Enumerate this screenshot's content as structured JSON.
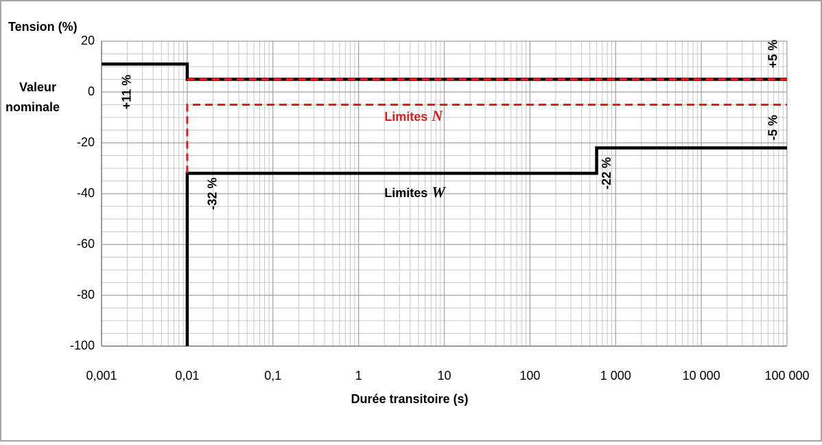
{
  "chart_data": {
    "type": "line",
    "y_title": "Tension (%)",
    "y_note": [
      "Valeur",
      "nominale"
    ],
    "x_title": "Durée transitoire (s)",
    "xscale": "log",
    "xlim": [
      0.001,
      100000
    ],
    "xticks": [
      {
        "value": 0.001,
        "label": "0,001"
      },
      {
        "value": 0.01,
        "label": "0,01"
      },
      {
        "value": 0.1,
        "label": "0,1"
      },
      1,
      10,
      100,
      {
        "value": 1000,
        "label": "1 000"
      },
      {
        "value": 10000,
        "label": "10 000"
      },
      {
        "value": 100000,
        "label": "100 000"
      }
    ],
    "ylim": [
      -100,
      20
    ],
    "yticks": [
      20,
      0,
      -20,
      -40,
      -60,
      -80,
      -100
    ],
    "grid": true,
    "series": [
      {
        "color": "#000000",
        "dash": false,
        "x": [
          0.001,
          0.01,
          0.01,
          100000
        ],
        "values": [
          11,
          11,
          5,
          5
        ]
      },
      {
        "color": "#000000",
        "dash": false,
        "x": [
          0.01,
          0.01,
          600,
          600,
          100000
        ],
        "values": [
          -100,
          -32,
          -32,
          -22,
          -22
        ]
      },
      {
        "color": "#e41a1c",
        "dash": true,
        "x": [
          0.01,
          100000
        ],
        "values": [
          5,
          5
        ]
      },
      {
        "color": "#e41a1c",
        "dash": true,
        "x": [
          0.01,
          0.01,
          100000
        ],
        "values": [
          -32,
          -5,
          -5
        ]
      }
    ],
    "annotations": [
      {
        "text": "+11 %",
        "x": 0.002,
        "y": 0,
        "rotate": true,
        "color": "#000000"
      },
      {
        "text": "-32 %",
        "x": 0.02,
        "y": -40,
        "rotate": true,
        "color": "#000000"
      },
      {
        "text": "-22 %",
        "x": 800,
        "y": -32,
        "rotate": true,
        "color": "#000000"
      },
      {
        "text": "+5 %",
        "x": 70000,
        "y": 15,
        "rotate": true,
        "color": "#000000"
      },
      {
        "text": "-5 %",
        "x": 70000,
        "y": -14,
        "rotate": true,
        "color": "#000000"
      },
      {
        "text": "Limites",
        "symbol": "N",
        "x": 2,
        "y": -10,
        "rotate": false,
        "color": "#e41a1c"
      },
      {
        "text": "Limites",
        "symbol": "W",
        "x": 2,
        "y": -40,
        "rotate": false,
        "color": "#000000"
      }
    ]
  }
}
